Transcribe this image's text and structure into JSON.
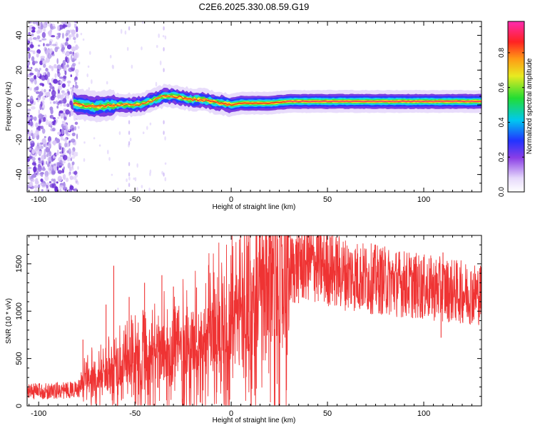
{
  "chart_data": [
    {
      "type": "heatmap",
      "name": "spectrogram",
      "title": "C2E6.2025.330.08.59.G19",
      "xlabel": "Height of straight line (km)",
      "ylabel": "Frequency (Hz)",
      "xlim": [
        -106,
        130
      ],
      "ylim": [
        -50,
        48
      ],
      "xticks": [
        -100,
        -50,
        0,
        50,
        100
      ],
      "yticks": [
        -40,
        -20,
        0,
        20,
        40
      ],
      "colorbar": {
        "label": "Normalized spectral amplitude",
        "range": [
          0.0,
          0.98
        ],
        "ticks": [
          0.0,
          0.2,
          0.4,
          0.6,
          0.8
        ],
        "colormap": "rainbow (white at 0, purple, blue, cyan, green, yellow, orange, red, magenta at max)"
      },
      "ridge_frequency": {
        "x": [
          -85,
          -78,
          -70,
          -60,
          -50,
          -45,
          -40,
          -35,
          -30,
          -25,
          -20,
          -15,
          -10,
          -5,
          0,
          5,
          10,
          20,
          30,
          50,
          100,
          130
        ],
        "y": [
          2,
          0,
          -1,
          0,
          0,
          1,
          3,
          5,
          5,
          4,
          3,
          3,
          2,
          1,
          0,
          1,
          1,
          1,
          2,
          2,
          2,
          2
        ]
      },
      "noise_region_x": [
        -106,
        -80
      ]
    },
    {
      "type": "line",
      "name": "snr",
      "xlabel": "Height of straight line (km)",
      "ylabel": "SNR (10 * v/v)",
      "xlim": [
        -106,
        130
      ],
      "ylim": [
        0,
        1800
      ],
      "xticks": [
        -100,
        -50,
        0,
        50,
        100
      ],
      "yticks": [
        0,
        500,
        1000,
        1500
      ],
      "color": "#ef3333",
      "envelope": {
        "x": [
          -106,
          -90,
          -78,
          -77,
          -70,
          -60,
          -50,
          -40,
          -30,
          -20,
          -10,
          0,
          5,
          10,
          15,
          20,
          30,
          40,
          50,
          60,
          70,
          80,
          90,
          100,
          110,
          120,
          130
        ],
        "y": [
          150,
          160,
          180,
          250,
          300,
          380,
          450,
          520,
          580,
          650,
          750,
          880,
          950,
          1000,
          1100,
          1250,
          1430,
          1520,
          1450,
          1390,
          1350,
          1320,
          1290,
          1250,
          1230,
          1200,
          1180
        ]
      },
      "spikes": [
        {
          "x": -77,
          "y": 700
        },
        {
          "x": -65,
          "y": 1070
        },
        {
          "x": -61,
          "y": 1480
        },
        {
          "x": -53,
          "y": 1150
        },
        {
          "x": -45,
          "y": 1300
        },
        {
          "x": -36,
          "y": 1380
        },
        {
          "x": -30,
          "y": 1260
        },
        {
          "x": -18,
          "y": 1250
        },
        {
          "x": 0,
          "y": 1400
        },
        {
          "x": 9,
          "y": 1730
        },
        {
          "x": 10,
          "y": 380
        },
        {
          "x": 21,
          "y": 1740
        },
        {
          "x": 36,
          "y": 1770
        },
        {
          "x": 40,
          "y": 1720
        },
        {
          "x": 110,
          "y": 1620
        },
        {
          "x": 109,
          "y": 720
        }
      ]
    }
  ]
}
